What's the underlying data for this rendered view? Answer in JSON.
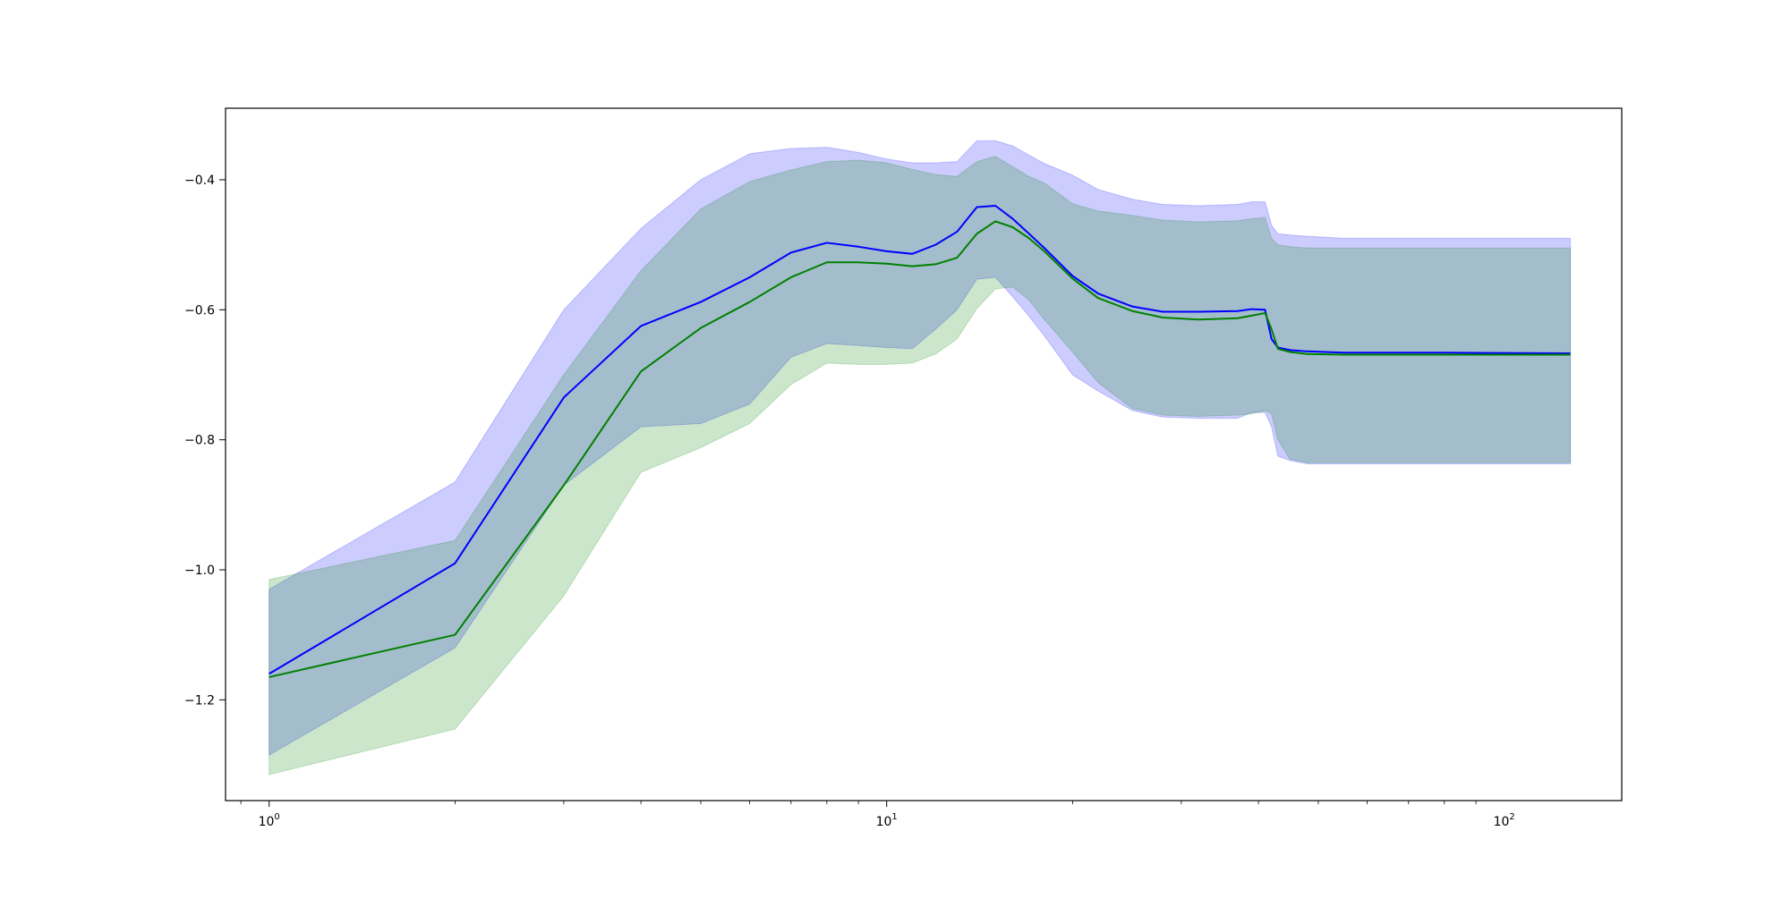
{
  "chart_data": {
    "type": "line",
    "title": "",
    "xlabel": "",
    "ylabel": "",
    "xscale": "log",
    "xlim": [
      0.85,
      155
    ],
    "ylim": [
      -1.355,
      -0.29
    ],
    "grid": false,
    "legend": "none",
    "x_ticks": [
      {
        "value": 1,
        "base": "10",
        "exp": "0"
      },
      {
        "value": 10,
        "base": "10",
        "exp": "1"
      },
      {
        "value": 100,
        "base": "10",
        "exp": "2"
      }
    ],
    "y_ticks": [
      {
        "value": -1.2,
        "label": "−1.2"
      },
      {
        "value": -1.0,
        "label": "−1.0"
      },
      {
        "value": -0.8,
        "label": "−0.8"
      },
      {
        "value": -0.6,
        "label": "−0.6"
      },
      {
        "value": -0.4,
        "label": "−0.4"
      }
    ],
    "series": [
      {
        "color": "#0000ff",
        "band_color": "#0000ff",
        "band_opacity": 0.2,
        "points": [
          [
            1,
            -1.16,
            -1.285,
            -1.03
          ],
          [
            2,
            -0.99,
            -1.12,
            -0.865
          ],
          [
            3,
            -0.735,
            -0.87,
            -0.6
          ],
          [
            4,
            -0.625,
            -0.78,
            -0.475
          ],
          [
            5,
            -0.588,
            -0.775,
            -0.4
          ],
          [
            6,
            -0.55,
            -0.745,
            -0.36
          ],
          [
            7,
            -0.512,
            -0.673,
            -0.352
          ],
          [
            8,
            -0.497,
            -0.652,
            -0.35
          ],
          [
            9,
            -0.503,
            -0.655,
            -0.358
          ],
          [
            10,
            -0.51,
            -0.658,
            -0.368
          ],
          [
            11,
            -0.514,
            -0.66,
            -0.374
          ],
          [
            12,
            -0.5,
            -0.63,
            -0.374
          ],
          [
            13,
            -0.48,
            -0.6,
            -0.372
          ],
          [
            14,
            -0.442,
            -0.553,
            -0.34
          ],
          [
            15,
            -0.44,
            -0.55,
            -0.34
          ],
          [
            16,
            -0.46,
            -0.58,
            -0.348
          ],
          [
            17,
            -0.483,
            -0.61,
            -0.362
          ],
          [
            18,
            -0.505,
            -0.64,
            -0.375
          ],
          [
            20,
            -0.548,
            -0.7,
            -0.393
          ],
          [
            22,
            -0.575,
            -0.725,
            -0.415
          ],
          [
            25,
            -0.595,
            -0.755,
            -0.43
          ],
          [
            28,
            -0.603,
            -0.765,
            -0.438
          ],
          [
            32,
            -0.603,
            -0.767,
            -0.44
          ],
          [
            37,
            -0.602,
            -0.767,
            -0.438
          ],
          [
            39,
            -0.599,
            -0.758,
            -0.434
          ],
          [
            41,
            -0.6,
            -0.758,
            -0.434
          ],
          [
            42,
            -0.645,
            -0.78,
            -0.47
          ],
          [
            43,
            -0.658,
            -0.825,
            -0.483
          ],
          [
            45,
            -0.662,
            -0.832,
            -0.485
          ],
          [
            48,
            -0.664,
            -0.837,
            -0.487
          ],
          [
            55,
            -0.666,
            -0.837,
            -0.49
          ],
          [
            80,
            -0.666,
            -0.837,
            -0.49
          ],
          [
            128,
            -0.667,
            -0.837,
            -0.49
          ]
        ]
      },
      {
        "color": "#008000",
        "band_color": "#008000",
        "band_opacity": 0.2,
        "points": [
          [
            1,
            -1.165,
            -1.315,
            -1.015
          ],
          [
            2,
            -1.1,
            -1.245,
            -0.955
          ],
          [
            3,
            -0.87,
            -1.04,
            -0.7
          ],
          [
            4,
            -0.695,
            -0.85,
            -0.54
          ],
          [
            5,
            -0.628,
            -0.812,
            -0.445
          ],
          [
            6,
            -0.588,
            -0.775,
            -0.403
          ],
          [
            7,
            -0.55,
            -0.715,
            -0.385
          ],
          [
            8,
            -0.527,
            -0.682,
            -0.372
          ],
          [
            9,
            -0.527,
            -0.684,
            -0.37
          ],
          [
            10,
            -0.529,
            -0.684,
            -0.374
          ],
          [
            11,
            -0.533,
            -0.682,
            -0.384
          ],
          [
            12,
            -0.53,
            -0.668,
            -0.392
          ],
          [
            13,
            -0.52,
            -0.645,
            -0.395
          ],
          [
            14,
            -0.483,
            -0.598,
            -0.372
          ],
          [
            15,
            -0.464,
            -0.568,
            -0.364
          ],
          [
            16,
            -0.473,
            -0.565,
            -0.38
          ],
          [
            17,
            -0.49,
            -0.585,
            -0.395
          ],
          [
            18,
            -0.51,
            -0.615,
            -0.405
          ],
          [
            20,
            -0.552,
            -0.665,
            -0.437
          ],
          [
            22,
            -0.582,
            -0.712,
            -0.448
          ],
          [
            25,
            -0.602,
            -0.752,
            -0.455
          ],
          [
            28,
            -0.612,
            -0.762,
            -0.462
          ],
          [
            32,
            -0.615,
            -0.764,
            -0.465
          ],
          [
            37,
            -0.613,
            -0.762,
            -0.463
          ],
          [
            39,
            -0.609,
            -0.76,
            -0.46
          ],
          [
            41,
            -0.605,
            -0.755,
            -0.458
          ],
          [
            42,
            -0.63,
            -0.76,
            -0.49
          ],
          [
            43,
            -0.66,
            -0.8,
            -0.5
          ],
          [
            45,
            -0.665,
            -0.83,
            -0.503
          ],
          [
            48,
            -0.668,
            -0.835,
            -0.505
          ],
          [
            55,
            -0.669,
            -0.835,
            -0.505
          ],
          [
            80,
            -0.669,
            -0.835,
            -0.505
          ],
          [
            128,
            -0.669,
            -0.835,
            -0.505
          ]
        ]
      }
    ]
  }
}
